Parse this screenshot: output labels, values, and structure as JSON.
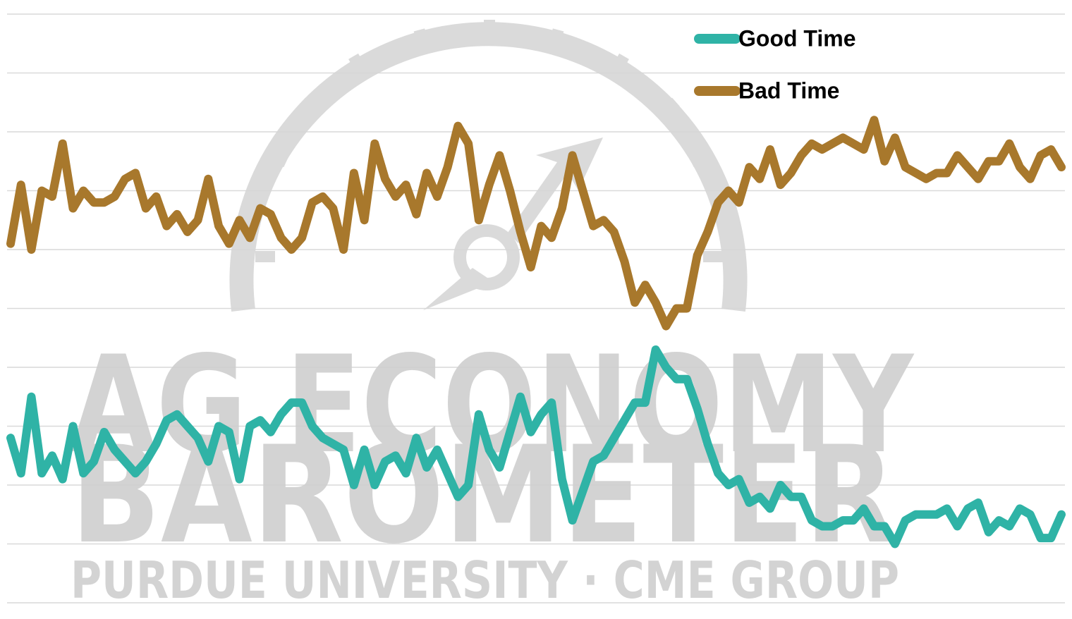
{
  "chart_data": {
    "type": "line",
    "annotations": [
      "AG ECONOMY",
      "BAROMETER",
      "PURDUE UNIVERSITY · CME GROUP"
    ],
    "categories": [
      null,
      null,
      null,
      null,
      null,
      null,
      null,
      null,
      null,
      null,
      null,
      null,
      null,
      null,
      null,
      null,
      null,
      null,
      null,
      null,
      null,
      null,
      null,
      null,
      null,
      null,
      null,
      null,
      null,
      null,
      null,
      null,
      null,
      null,
      null,
      null,
      null,
      null,
      null,
      null,
      null,
      null,
      null,
      null,
      null,
      null,
      null,
      null,
      null,
      null,
      null,
      null,
      null,
      null,
      null,
      null,
      null,
      null,
      null,
      null,
      null,
      null,
      null,
      null,
      null,
      null,
      null,
      null,
      null,
      null,
      null,
      null,
      null,
      null,
      null,
      null,
      null,
      null,
      null,
      null,
      null,
      null,
      null,
      null,
      null,
      null,
      null,
      null,
      null,
      null,
      null,
      null,
      null,
      null,
      null,
      null,
      null,
      null,
      null,
      null,
      null,
      null
    ],
    "series": [
      {
        "name": "Good Time",
        "color": "#2fb3a6",
        "values": [
          28,
          22,
          35,
          22,
          25,
          21,
          30,
          22,
          24,
          29,
          26,
          24,
          22,
          24,
          27,
          31,
          32,
          30,
          28,
          24,
          30,
          29,
          21,
          30,
          31,
          29,
          32,
          34,
          34,
          30,
          28,
          27,
          26,
          20,
          26,
          20,
          24,
          25,
          22,
          28,
          23,
          26,
          22,
          18,
          20,
          32,
          26,
          23,
          29,
          35,
          29,
          32,
          34,
          21,
          14,
          19,
          24,
          25,
          28,
          31,
          34,
          34,
          43,
          40,
          38,
          38,
          33,
          27,
          22,
          20,
          21,
          17,
          18,
          16,
          20,
          18,
          18,
          14,
          13,
          13,
          14,
          14,
          16,
          13,
          13,
          10,
          14,
          15,
          15,
          15,
          16,
          13,
          16,
          17,
          12,
          14,
          13,
          16,
          15,
          11,
          11,
          15
        ]
      },
      {
        "name": "Bad Time",
        "color": "#a8782c",
        "values": [
          61,
          71,
          60,
          70,
          69,
          78,
          67,
          70,
          68,
          68,
          69,
          72,
          73,
          67,
          69,
          64,
          66,
          63,
          65,
          72,
          64,
          61,
          65,
          62,
          67,
          66,
          62,
          60,
          62,
          68,
          69,
          67,
          60,
          73,
          65,
          78,
          72,
          69,
          71,
          66,
          73,
          69,
          74,
          81,
          78,
          65,
          71,
          76,
          70,
          63,
          57,
          64,
          62,
          67,
          76,
          70,
          64,
          65,
          63,
          58,
          51,
          54,
          51,
          47,
          50,
          50,
          59,
          63,
          68,
          70,
          68,
          74,
          72,
          77,
          71,
          73,
          76,
          78,
          77,
          78,
          79,
          78,
          77,
          82,
          75,
          79,
          74,
          73,
          72,
          73,
          73,
          76,
          74,
          72,
          75,
          75,
          78,
          74,
          72,
          76,
          77,
          74
        ]
      }
    ],
    "ylim": [
      0,
      100
    ],
    "yticks": [
      0,
      10,
      20,
      30,
      40,
      50,
      60,
      70,
      80,
      90,
      100
    ],
    "grid": true,
    "legend": "top-right"
  }
}
